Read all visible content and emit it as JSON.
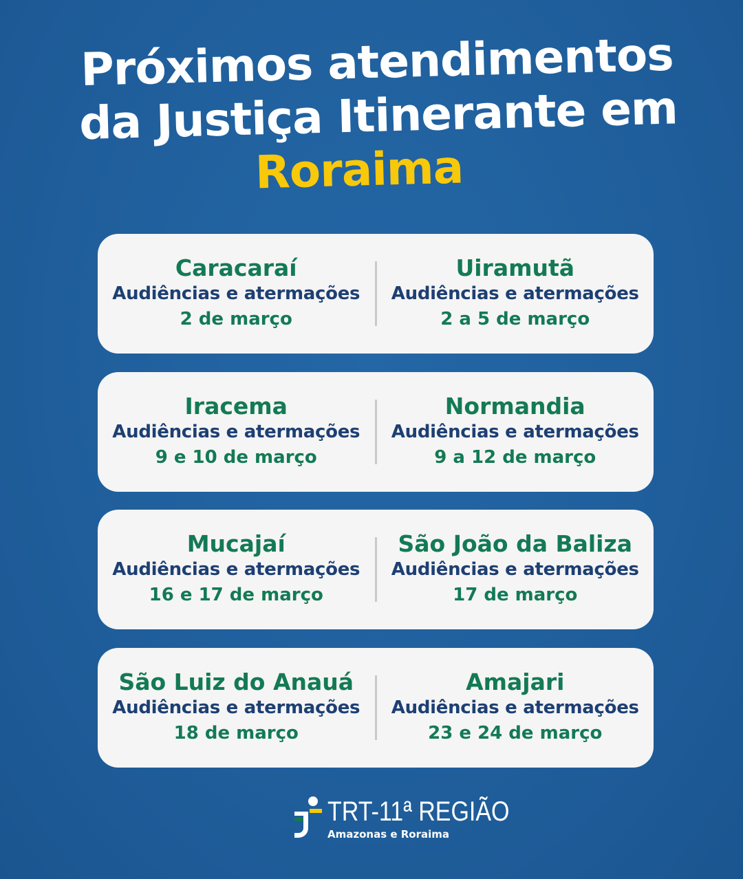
{
  "title": {
    "line1": "Próximos atendimentos",
    "line2": "da Justiça Itinerante em",
    "highlight": "Roraima"
  },
  "colors": {
    "background": "#1f5e9b",
    "card": "#f5f5f5",
    "city": "#137a55",
    "activity": "#1d3f73",
    "highlight": "#f8c80a"
  },
  "cards": [
    [
      {
        "city": "Caracaraí",
        "activity": "Audiências e atermações",
        "date": "2 de março"
      },
      {
        "city": "Uiramutã",
        "activity": "Audiências e atermações",
        "date": "2 a 5 de março"
      }
    ],
    [
      {
        "city": "Iracema",
        "activity": "Audiências e atermações",
        "date": "9 e 10 de março"
      },
      {
        "city": "Normandia",
        "activity": "Audiências e atermações",
        "date": "9 a 12 de março"
      }
    ],
    [
      {
        "city": "Mucajaí",
        "activity": "Audiências e atermações",
        "date": "16 e 17 de março"
      },
      {
        "city": "São João da Baliza",
        "activity": "Audiências e atermações",
        "date": "17 de março"
      }
    ],
    [
      {
        "city": "São Luiz do Anauá",
        "activity": "Audiências e atermações",
        "date": "18 de março"
      },
      {
        "city": "Amajari",
        "activity": "Audiências e atermações",
        "date": "23 e 24 de março"
      }
    ]
  ],
  "logo": {
    "name": "TRT-11ª REGIÃO",
    "subtitle": "Amazonas e Roraima"
  }
}
